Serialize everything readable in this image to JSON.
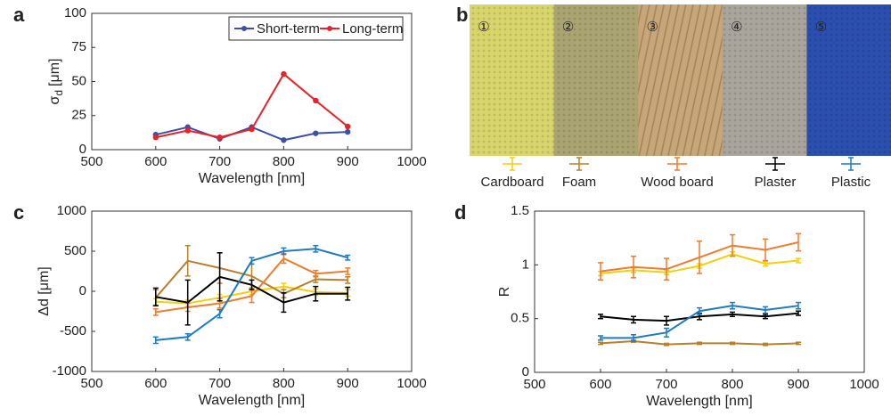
{
  "chart_data": [
    {
      "type": "line",
      "panel": "a",
      "xlabel": "Wavelength [nm]",
      "ylabel_symbol": "σ",
      "ylabel_subscript": "d",
      "ylabel_unit": "[μm]",
      "x": [
        600,
        650,
        700,
        750,
        800,
        850,
        900
      ],
      "xlim": [
        500,
        1000
      ],
      "xticks": [
        500,
        600,
        700,
        800,
        900,
        1000
      ],
      "ylim": [
        0,
        100
      ],
      "yticks": [
        0,
        25,
        50,
        75,
        100
      ],
      "legend": "upper-right",
      "markers": true,
      "series": [
        {
          "name": "Short-term",
          "color": "#3f4fa6",
          "values": [
            11,
            16.5,
            8,
            16.5,
            7,
            12,
            13
          ]
        },
        {
          "name": "Long-term",
          "color": "#e8222a",
          "values": [
            9,
            14,
            9,
            15,
            55.5,
            36,
            17
          ]
        }
      ]
    },
    {
      "type": "image",
      "panel": "b",
      "labels": [
        "①",
        "②",
        "③",
        "④",
        "⑤"
      ],
      "colors": [
        "#d8d56c",
        "#a9a472",
        "#c7a67a",
        "#a9a49c",
        "#2b4fae"
      ]
    },
    {
      "type": "line",
      "panel": "c",
      "xlabel": "Wavelength [nm]",
      "ylabel": "Δd [μm]",
      "x": [
        600,
        650,
        700,
        750,
        800,
        850,
        900
      ],
      "xlim": [
        500,
        1000
      ],
      "xticks": [
        500,
        600,
        700,
        800,
        900,
        1000
      ],
      "ylim": [
        -1000,
        1000
      ],
      "yticks": [
        -1000,
        -500,
        0,
        500,
        1000
      ],
      "errorbars": true,
      "series": [
        {
          "name": "Cardboard",
          "color": "#f5cf0a",
          "values": [
            -130,
            -150,
            -80,
            0,
            60,
            -10,
            -20
          ],
          "errors": [
            40,
            40,
            40,
            40,
            40,
            40,
            40
          ]
        },
        {
          "name": "Foam",
          "color": "#b8802a",
          "values": [
            -80,
            380,
            290,
            190,
            -30,
            150,
            140
          ],
          "errors": [
            100,
            190,
            190,
            150,
            50,
            40,
            40
          ]
        },
        {
          "name": "Wood board",
          "color": "#ef7b2d",
          "values": [
            -260,
            -200,
            -150,
            -60,
            410,
            220,
            250
          ],
          "errors": [
            40,
            50,
            60,
            80,
            60,
            40,
            40
          ]
        },
        {
          "name": "Plaster",
          "color": "#000000",
          "values": [
            -70,
            -140,
            180,
            80,
            -140,
            -30,
            -30
          ],
          "errors": [
            110,
            280,
            300,
            60,
            120,
            90,
            80
          ]
        },
        {
          "name": "Plastic",
          "color": "#1f7ac0",
          "values": [
            -610,
            -570,
            -280,
            380,
            500,
            530,
            420
          ],
          "errors": [
            40,
            40,
            50,
            40,
            40,
            40,
            30
          ]
        }
      ]
    },
    {
      "type": "line",
      "panel": "d",
      "xlabel": "Wavelength [nm]",
      "ylabel": "R",
      "x": [
        600,
        650,
        700,
        750,
        800,
        850,
        900
      ],
      "xlim": [
        500,
        1000
      ],
      "xticks": [
        500,
        600,
        700,
        800,
        900,
        1000
      ],
      "ylim": [
        0,
        1.5
      ],
      "yticks": [
        0,
        0.5,
        1,
        1.5
      ],
      "errorbars": true,
      "series": [
        {
          "name": "Cardboard",
          "color": "#f5cf0a",
          "values": [
            0.92,
            0.95,
            0.93,
            0.99,
            1.1,
            1.01,
            1.04
          ],
          "errors": [
            0.02,
            0.02,
            0.02,
            0.02,
            0.02,
            0.02,
            0.02
          ]
        },
        {
          "name": "Foam",
          "color": "#b8802a",
          "values": [
            0.27,
            0.29,
            0.26,
            0.27,
            0.27,
            0.26,
            0.27
          ],
          "errors": [
            0.01,
            0.01,
            0.01,
            0.01,
            0.01,
            0.01,
            0.01
          ]
        },
        {
          "name": "Wood board",
          "color": "#ef7b2d",
          "values": [
            0.94,
            0.98,
            0.96,
            1.07,
            1.18,
            1.14,
            1.21
          ],
          "errors": [
            0.08,
            0.1,
            0.1,
            0.15,
            0.1,
            0.1,
            0.08
          ]
        },
        {
          "name": "Plaster",
          "color": "#000000",
          "values": [
            0.52,
            0.49,
            0.48,
            0.52,
            0.54,
            0.52,
            0.55
          ],
          "errors": [
            0.02,
            0.03,
            0.04,
            0.03,
            0.02,
            0.02,
            0.02
          ]
        },
        {
          "name": "Plastic",
          "color": "#1f7ac0",
          "values": [
            0.32,
            0.32,
            0.37,
            0.57,
            0.62,
            0.58,
            0.62
          ],
          "errors": [
            0.02,
            0.03,
            0.04,
            0.03,
            0.03,
            0.03,
            0.03
          ]
        }
      ]
    }
  ]
}
